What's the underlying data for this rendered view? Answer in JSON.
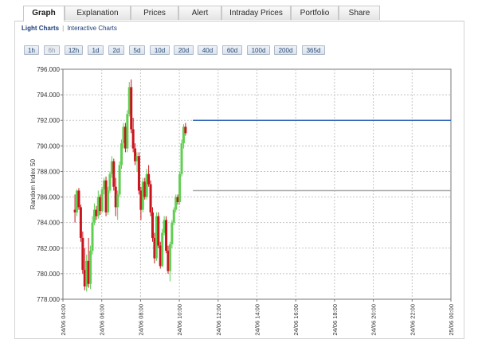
{
  "tabs": [
    {
      "label": "Graph",
      "active": true
    },
    {
      "label": "Explanation",
      "active": false
    },
    {
      "label": "Prices",
      "active": false
    },
    {
      "label": "Alert",
      "active": false
    },
    {
      "label": "Intraday Prices",
      "active": false
    },
    {
      "label": "Portfolio",
      "active": false
    },
    {
      "label": "Share",
      "active": false
    }
  ],
  "subnav": {
    "light": "Light Charts",
    "interactive": "Interactive Charts",
    "separator": "|"
  },
  "ranges": [
    "1h",
    "6h",
    "12h",
    "1d",
    "2d",
    "5d",
    "10d",
    "20d",
    "40d",
    "60d",
    "100d",
    "200d",
    "365d"
  ],
  "disabled_range": "6h",
  "colors": {
    "up": "#5fcf52",
    "down": "#c8141c",
    "line_blue": "#2f66b8",
    "line_gray": "#aaaaaa",
    "grid": "#c4c4c4"
  },
  "chart_data": {
    "type": "candlestick",
    "ylabel": "Random Index 50",
    "ylim": [
      778,
      796
    ],
    "yticks": [
      "778.000",
      "780.000",
      "782.000",
      "784.000",
      "786.000",
      "788.000",
      "790.000",
      "792.000",
      "794.000",
      "796.000"
    ],
    "xlim": [
      4,
      24
    ],
    "xticks": [
      4,
      6,
      8,
      10,
      12,
      14,
      16,
      18,
      20,
      22,
      24
    ],
    "xticklabels": [
      "24/06 04:00",
      "24/06 06:00",
      "24/06 08:00",
      "24/06 10:00",
      "24/06 12:00",
      "24/06 14:00",
      "24/06 16:00",
      "24/06 18:00",
      "24/06 20:00",
      "24/06 22:00",
      "25/06 00:00"
    ],
    "grid": true,
    "hlines": [
      {
        "y": 792.0,
        "from": 10.7,
        "to": 24,
        "color": "blue"
      },
      {
        "y": 786.5,
        "from": 10.7,
        "to": 24,
        "color": "gray"
      }
    ],
    "candles": [
      [
        4.62,
        785.0,
        786.2,
        784.0,
        784.8
      ],
      [
        4.72,
        784.8,
        786.6,
        784.5,
        786.5
      ],
      [
        4.82,
        786.5,
        786.7,
        785.0,
        785.2
      ],
      [
        4.92,
        785.2,
        785.4,
        782.5,
        782.8
      ],
      [
        5.02,
        782.8,
        783.3,
        780.0,
        780.3
      ],
      [
        5.12,
        780.3,
        782.0,
        778.7,
        779.0
      ],
      [
        5.22,
        779.0,
        781.5,
        778.6,
        781.0
      ],
      [
        5.32,
        781.0,
        782.8,
        778.9,
        779.2
      ],
      [
        5.42,
        779.2,
        782.2,
        778.8,
        781.8
      ],
      [
        5.52,
        781.8,
        784.5,
        781.5,
        784.0
      ],
      [
        5.62,
        784.0,
        785.5,
        783.8,
        785.0
      ],
      [
        5.72,
        785.0,
        785.3,
        784.2,
        784.5
      ],
      [
        5.82,
        784.5,
        786.5,
        784.3,
        786.0
      ],
      [
        5.92,
        786.0,
        786.2,
        784.6,
        784.9
      ],
      [
        6.02,
        784.9,
        786.8,
        784.8,
        786.6
      ],
      [
        6.12,
        786.6,
        787.5,
        786.2,
        787.3
      ],
      [
        6.22,
        787.3,
        787.6,
        784.5,
        784.8
      ],
      [
        6.32,
        784.8,
        786.8,
        784.6,
        786.5
      ],
      [
        6.42,
        786.5,
        788.0,
        786.3,
        787.8
      ],
      [
        6.52,
        787.8,
        789.2,
        787.5,
        788.8
      ],
      [
        6.62,
        788.8,
        789.0,
        786.5,
        786.8
      ],
      [
        6.72,
        786.8,
        787.5,
        784.5,
        785.2
      ],
      [
        6.82,
        785.2,
        786.5,
        784.2,
        786.2
      ],
      [
        6.92,
        786.2,
        788.8,
        786.0,
        788.5
      ],
      [
        7.02,
        788.5,
        790.5,
        788.2,
        790.2
      ],
      [
        7.12,
        790.2,
        791.8,
        789.8,
        791.5
      ],
      [
        7.22,
        791.5,
        791.8,
        789.5,
        789.8
      ],
      [
        7.32,
        789.8,
        792.8,
        789.5,
        792.5
      ],
      [
        7.42,
        792.5,
        795.0,
        792.3,
        794.6
      ],
      [
        7.52,
        794.6,
        795.2,
        791.0,
        791.3
      ],
      [
        7.62,
        791.3,
        792.2,
        789.5,
        789.8
      ],
      [
        7.72,
        789.8,
        790.2,
        788.5,
        788.8
      ],
      [
        7.82,
        788.8,
        789.5,
        788.0,
        789.2
      ],
      [
        7.92,
        789.2,
        789.5,
        786.2,
        786.5
      ],
      [
        8.02,
        786.5,
        786.8,
        784.2,
        785.0
      ],
      [
        8.12,
        785.0,
        787.5,
        784.8,
        787.2
      ],
      [
        8.22,
        787.2,
        787.5,
        785.8,
        786.0
      ],
      [
        8.32,
        786.0,
        788.2,
        785.8,
        787.8
      ],
      [
        8.42,
        787.8,
        788.5,
        786.8,
        787.0
      ],
      [
        8.52,
        787.0,
        787.3,
        784.5,
        784.8
      ],
      [
        8.62,
        784.8,
        785.2,
        782.5,
        782.8
      ],
      [
        8.72,
        782.8,
        783.2,
        780.8,
        781.2
      ],
      [
        8.82,
        781.2,
        784.8,
        781.0,
        784.5
      ],
      [
        8.92,
        784.5,
        784.8,
        782.0,
        782.2
      ],
      [
        9.02,
        782.2,
        782.5,
        780.4,
        780.6
      ],
      [
        9.12,
        780.6,
        783.5,
        780.5,
        783.2
      ],
      [
        9.22,
        783.2,
        784.5,
        783.0,
        784.2
      ],
      [
        9.32,
        784.2,
        784.5,
        781.6,
        781.8
      ],
      [
        9.42,
        781.8,
        782.2,
        780.0,
        780.2
      ],
      [
        9.52,
        780.2,
        782.5,
        779.4,
        782.3
      ],
      [
        9.62,
        782.3,
        784.2,
        782.0,
        784.0
      ],
      [
        9.72,
        784.0,
        785.2,
        783.8,
        785.0
      ],
      [
        9.82,
        785.0,
        786.2,
        784.8,
        786.0
      ],
      [
        9.92,
        786.0,
        786.2,
        785.4,
        785.6
      ],
      [
        10.02,
        785.6,
        788.0,
        785.4,
        787.8
      ],
      [
        10.12,
        787.8,
        790.5,
        787.6,
        790.2
      ],
      [
        10.22,
        790.2,
        791.7,
        789.8,
        791.5
      ],
      [
        10.32,
        791.5,
        791.8,
        790.8,
        791.0
      ]
    ]
  }
}
